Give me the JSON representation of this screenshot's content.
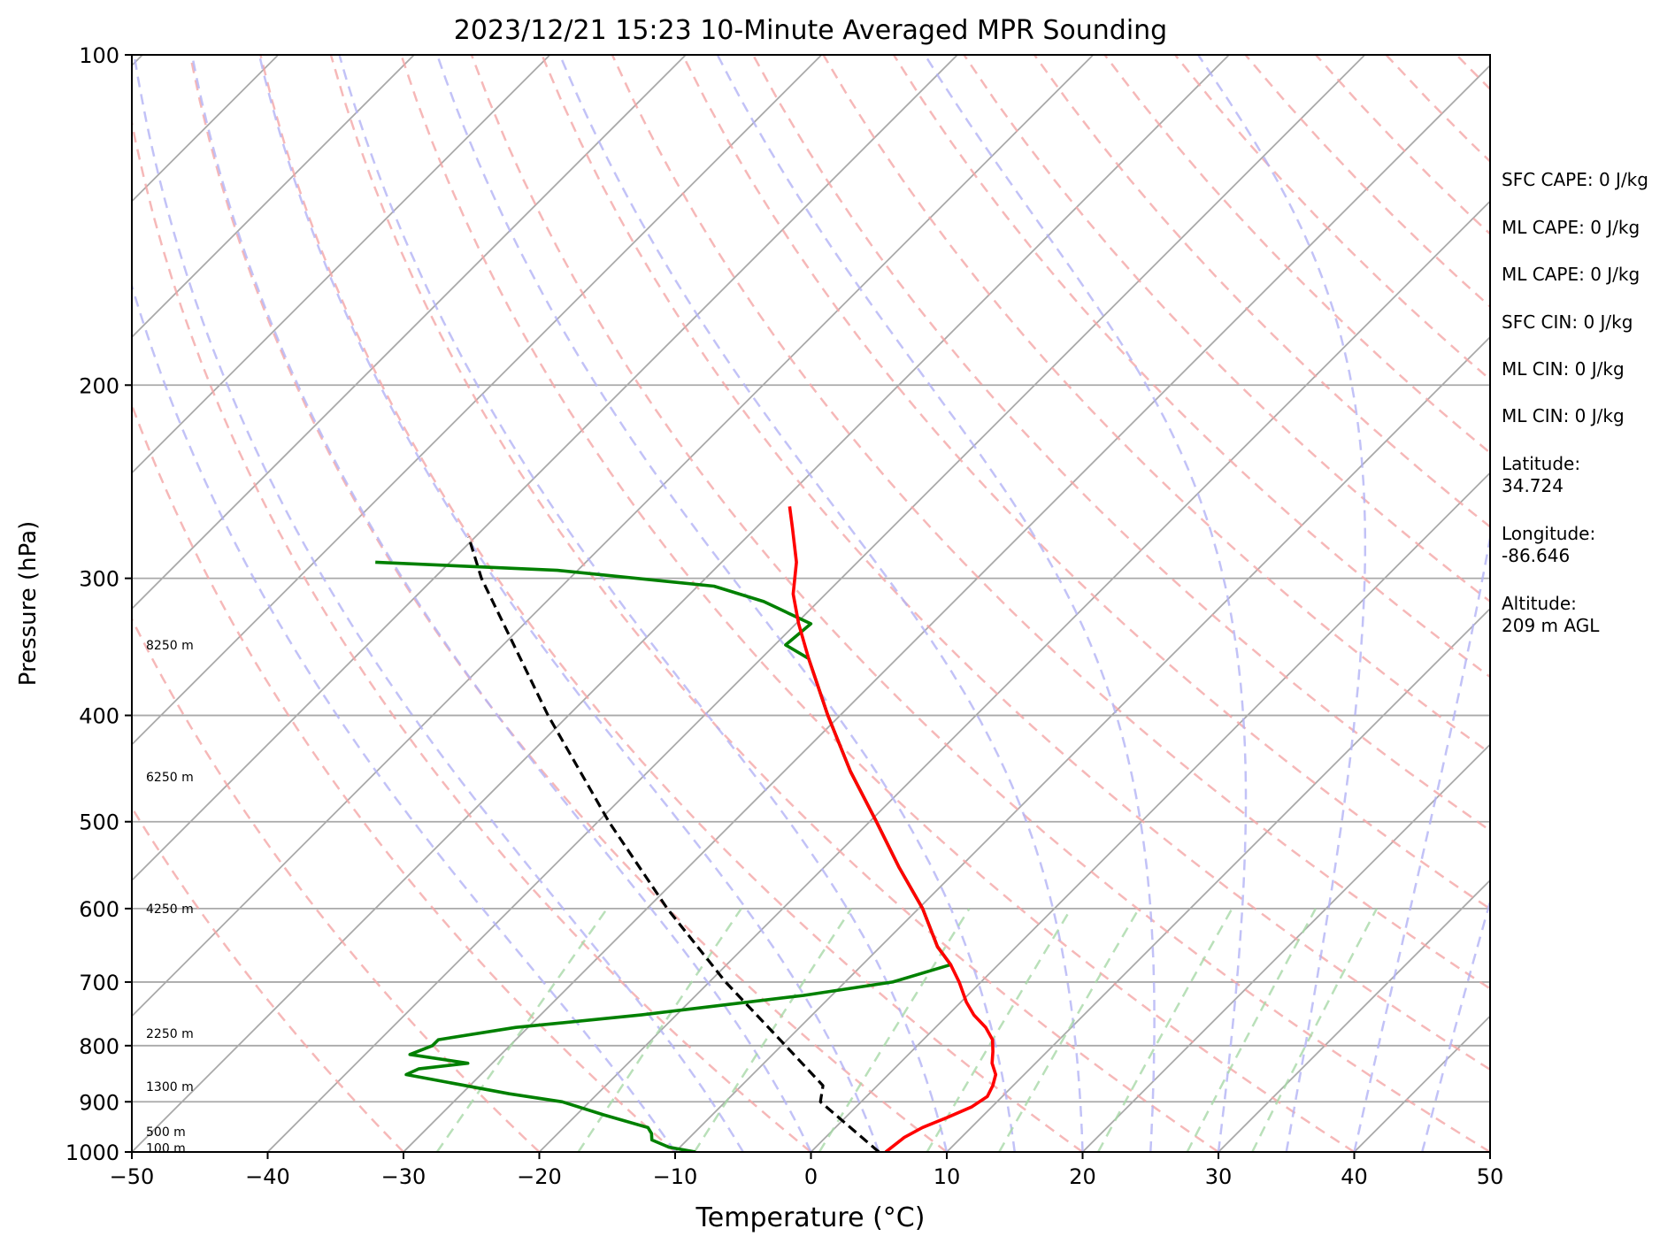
{
  "chart_data": {
    "type": "skew-t",
    "title": "2023/12/21 15:23 10-Minute Averaged MPR Sounding",
    "xlabel": "Temperature (°C)",
    "ylabel": "Pressure (hPa)",
    "xlim": [
      -50,
      50
    ],
    "ylim": [
      1000,
      100
    ],
    "y_scale": "log",
    "xticks": [
      -50,
      -40,
      -30,
      -20,
      -10,
      0,
      10,
      20,
      30,
      40,
      50
    ],
    "xtick_labels": [
      "−50",
      "−40",
      "−30",
      "−20",
      "−10",
      "0",
      "10",
      "20",
      "30",
      "40",
      "50"
    ],
    "yticks": [
      100,
      200,
      300,
      400,
      500,
      600,
      700,
      800,
      900,
      1000
    ],
    "ytick_labels": [
      "100",
      "200",
      "300",
      "400",
      "500",
      "600",
      "700",
      "800",
      "900",
      "1000"
    ],
    "horizontal_grid": true,
    "height_labels": [
      {
        "pressure": 345,
        "text": "8250 m"
      },
      {
        "pressure": 455,
        "text": "6250 m"
      },
      {
        "pressure": 600,
        "text": "4250 m"
      },
      {
        "pressure": 780,
        "text": "2250 m"
      },
      {
        "pressure": 872,
        "text": "1300 m"
      },
      {
        "pressure": 958,
        "text": "500 m"
      },
      {
        "pressure": 992,
        "text": "100 m"
      }
    ],
    "temperature": {
      "color": "#ff0000",
      "points": [
        {
          "p": 1000,
          "t": 5.5
        },
        {
          "p": 990,
          "t": 5.6
        },
        {
          "p": 970,
          "t": 5.8
        },
        {
          "p": 950,
          "t": 6.4
        },
        {
          "p": 930,
          "t": 7.5
        },
        {
          "p": 910,
          "t": 8.5
        },
        {
          "p": 890,
          "t": 8.9
        },
        {
          "p": 870,
          "t": 8.5
        },
        {
          "p": 850,
          "t": 7.9
        },
        {
          "p": 830,
          "t": 6.8
        },
        {
          "p": 810,
          "t": 6.0
        },
        {
          "p": 790,
          "t": 5.1
        },
        {
          "p": 770,
          "t": 3.7
        },
        {
          "p": 750,
          "t": 1.9
        },
        {
          "p": 730,
          "t": 0.4
        },
        {
          "p": 700,
          "t": -1.6
        },
        {
          "p": 675,
          "t": -3.5
        },
        {
          "p": 650,
          "t": -5.8
        },
        {
          "p": 600,
          "t": -9.7
        },
        {
          "p": 550,
          "t": -14.5
        },
        {
          "p": 500,
          "t": -19.5
        },
        {
          "p": 450,
          "t": -25.1
        },
        {
          "p": 400,
          "t": -30.9
        },
        {
          "p": 355,
          "t": -36.5
        },
        {
          "p": 330,
          "t": -39.8
        },
        {
          "p": 310,
          "t": -42.4
        },
        {
          "p": 290,
          "t": -44.5
        },
        {
          "p": 270,
          "t": -47.3
        },
        {
          "p": 258,
          "t": -49.1
        }
      ]
    },
    "dewpoint": {
      "color": "#008000",
      "points": [
        {
          "p": 1000,
          "t": -8.5
        },
        {
          "p": 990,
          "t": -10.8
        },
        {
          "p": 975,
          "t": -12.6
        },
        {
          "p": 962,
          "t": -13.1
        },
        {
          "p": 950,
          "t": -13.8
        },
        {
          "p": 925,
          "t": -18.0
        },
        {
          "p": 900,
          "t": -22.0
        },
        {
          "p": 885,
          "t": -26.5
        },
        {
          "p": 850,
          "t": -35.5
        },
        {
          "p": 840,
          "t": -35.0
        },
        {
          "p": 830,
          "t": -31.8
        },
        {
          "p": 815,
          "t": -36.7
        },
        {
          "p": 800,
          "t": -35.7
        },
        {
          "p": 790,
          "t": -35.7
        },
        {
          "p": 770,
          "t": -30.9
        },
        {
          "p": 750,
          "t": -22.6
        },
        {
          "p": 720,
          "t": -12.1
        },
        {
          "p": 700,
          "t": -6.5
        },
        {
          "p": 675,
          "t": -3.5
        },
        {
          "p": 650,
          "t": -5.8
        },
        {
          "p": 600,
          "t": -9.7
        },
        {
          "p": 550,
          "t": -14.5
        },
        {
          "p": 500,
          "t": -19.5
        },
        {
          "p": 450,
          "t": -25.1
        },
        {
          "p": 400,
          "t": -30.9
        },
        {
          "p": 355,
          "t": -36.5
        },
        {
          "p": 345,
          "t": -39.2
        },
        {
          "p": 330,
          "t": -38.9
        },
        {
          "p": 315,
          "t": -44.0
        },
        {
          "p": 305,
          "t": -48.8
        },
        {
          "p": 295,
          "t": -61.5
        },
        {
          "p": 290,
          "t": -75.5
        }
      ]
    },
    "parcel_profile": {
      "color": "#000000",
      "points": [
        {
          "p": 1000,
          "t": 5.0
        },
        {
          "p": 900,
          "t": -3.0
        },
        {
          "p": 870,
          "t": -4.0
        },
        {
          "p": 800,
          "t": -9.7
        },
        {
          "p": 700,
          "t": -18.8
        },
        {
          "p": 600,
          "t": -28.5
        },
        {
          "p": 500,
          "t": -39.2
        },
        {
          "p": 400,
          "t": -51.5
        },
        {
          "p": 300,
          "t": -66.5
        },
        {
          "p": 275,
          "t": -70.5
        }
      ]
    },
    "dry_adiabat_thetas_c": [
      -30,
      -20,
      -10,
      0,
      10,
      20,
      30,
      40,
      50,
      60,
      70,
      80,
      90,
      100,
      110,
      120,
      130,
      140,
      150,
      160,
      170,
      180,
      190,
      200
    ],
    "moist_adiabat_start_temps_c": [
      -10,
      -5,
      0,
      5,
      10,
      15,
      20,
      25,
      30,
      35,
      40,
      45
    ],
    "mixing_ratios_gkg": [
      0.4,
      1,
      2,
      4,
      7,
      10,
      16,
      24,
      32
    ]
  },
  "sidebar": {
    "sfc_cape": "SFC CAPE: 0 J/kg",
    "ml_cape_1": "ML CAPE: 0 J/kg",
    "ml_cape_2": "ML CAPE: 0 J/kg",
    "sfc_cin": "SFC CIN: 0 J/kg",
    "ml_cin_1": "ML CIN: 0 J/kg",
    "ml_cin_2": "ML CIN: 0 J/kg",
    "latitude_label": "Latitude:",
    "latitude_value": "34.724",
    "longitude_label": "Longitude:",
    "longitude_value": "-86.646",
    "altitude_label": "Altitude:",
    "altitude_value": "209 m AGL"
  }
}
